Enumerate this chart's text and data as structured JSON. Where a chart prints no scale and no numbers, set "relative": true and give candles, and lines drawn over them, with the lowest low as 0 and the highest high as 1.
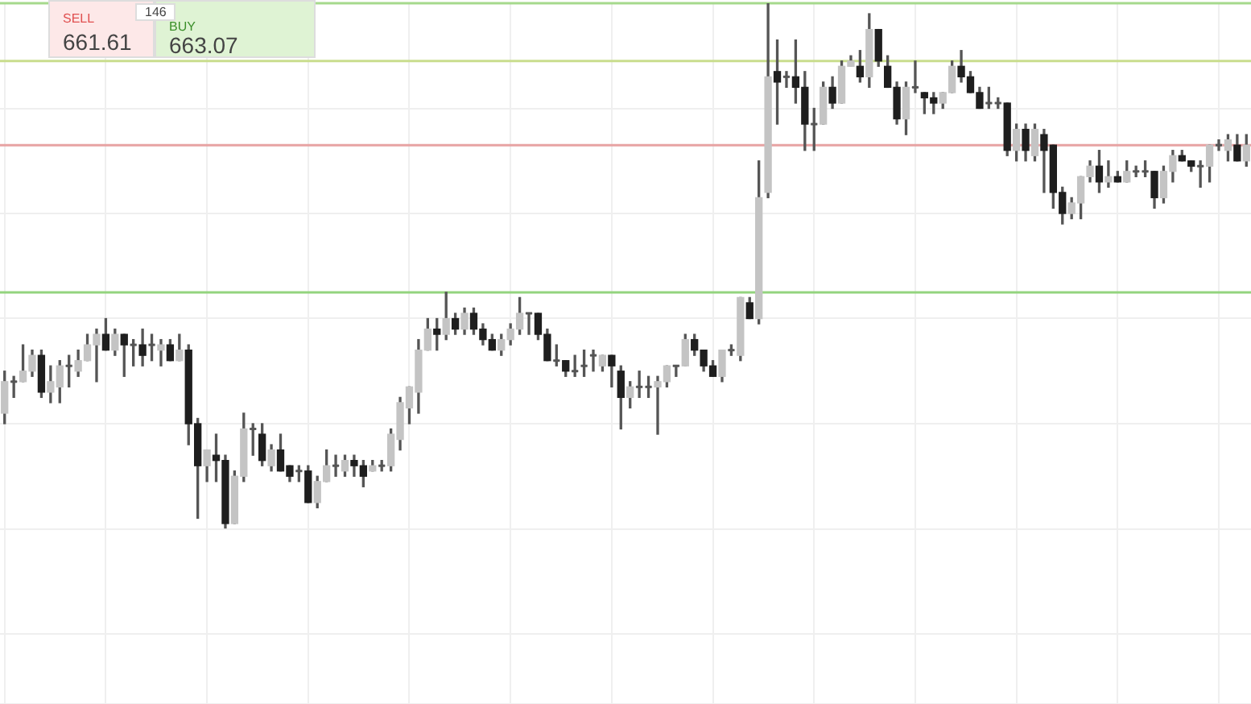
{
  "chart_data": {
    "type": "candlestick",
    "relative": true,
    "grid": true,
    "annotations": [
      "SELL",
      "661.61",
      "146",
      "BUY",
      "663.07"
    ],
    "ref_lines": [
      {
        "axis": "y",
        "value": 1.0,
        "color": "#a6d98c"
      },
      {
        "axis": "y",
        "value": 0.89,
        "color": "#c9dd8e"
      },
      {
        "axis": "y",
        "value": 0.73,
        "color": "#e7a3a3"
      },
      {
        "axis": "y",
        "value": 0.45,
        "color": "#93d47e"
      }
    ],
    "categories": [
      null,
      null,
      null,
      null,
      null,
      null,
      null,
      null,
      null,
      null,
      null,
      null,
      null,
      null,
      null,
      null,
      null,
      null,
      null,
      null,
      null,
      null,
      null,
      null,
      null,
      null,
      null,
      null,
      null,
      null,
      null,
      null,
      null,
      null,
      null,
      null,
      null,
      null,
      null,
      null,
      null,
      null,
      null,
      null,
      null,
      null,
      null,
      null,
      null,
      null,
      null,
      null,
      null,
      null,
      null,
      null,
      null,
      null,
      null,
      null,
      null,
      null,
      null,
      null,
      null,
      null,
      null,
      null,
      null,
      null,
      null,
      null,
      null,
      null,
      null,
      null,
      null,
      null,
      null,
      null,
      null,
      null,
      null,
      null,
      null,
      null,
      null,
      null,
      null,
      null,
      null,
      null,
      null,
      null,
      null,
      null,
      null,
      null,
      null,
      null,
      null,
      null,
      null,
      null,
      null,
      null,
      null,
      null,
      null,
      null,
      null,
      null,
      null,
      null,
      null,
      null,
      null,
      null,
      null,
      null,
      null,
      null,
      null,
      null,
      null,
      null,
      null,
      null,
      null,
      null,
      null,
      null,
      null,
      null,
      null,
      null
    ],
    "ohlc": [
      [
        0.22,
        0.3,
        0.2,
        0.28
      ],
      [
        0.28,
        0.29,
        0.25,
        0.28
      ],
      [
        0.28,
        0.35,
        0.28,
        0.3
      ],
      [
        0.3,
        0.34,
        0.29,
        0.33
      ],
      [
        0.33,
        0.34,
        0.25,
        0.26
      ],
      [
        0.26,
        0.31,
        0.24,
        0.28
      ],
      [
        0.27,
        0.32,
        0.24,
        0.31
      ],
      [
        0.31,
        0.33,
        0.27,
        0.31
      ],
      [
        0.3,
        0.34,
        0.29,
        0.32
      ],
      [
        0.32,
        0.37,
        0.32,
        0.35
      ],
      [
        0.35,
        0.38,
        0.28,
        0.37
      ],
      [
        0.37,
        0.4,
        0.34,
        0.34
      ],
      [
        0.34,
        0.38,
        0.33,
        0.37
      ],
      [
        0.37,
        0.37,
        0.29,
        0.35
      ],
      [
        0.35,
        0.36,
        0.31,
        0.35
      ],
      [
        0.35,
        0.38,
        0.31,
        0.33
      ],
      [
        0.35,
        0.37,
        0.32,
        0.35
      ],
      [
        0.34,
        0.36,
        0.31,
        0.35
      ],
      [
        0.35,
        0.36,
        0.32,
        0.32
      ],
      [
        0.32,
        0.37,
        0.32,
        0.34
      ],
      [
        0.34,
        0.35,
        0.16,
        0.2
      ],
      [
        0.2,
        0.21,
        0.02,
        0.12
      ],
      [
        0.12,
        0.15,
        0.09,
        0.15
      ],
      [
        0.14,
        0.18,
        0.09,
        0.13
      ],
      [
        0.13,
        0.14,
        0.0,
        0.01
      ],
      [
        0.01,
        0.11,
        0.01,
        0.1
      ],
      [
        0.1,
        0.22,
        0.09,
        0.19
      ],
      [
        0.19,
        0.2,
        0.14,
        0.19
      ],
      [
        0.18,
        0.2,
        0.12,
        0.13
      ],
      [
        0.12,
        0.16,
        0.11,
        0.15
      ],
      [
        0.15,
        0.18,
        0.11,
        0.11
      ],
      [
        0.12,
        0.12,
        0.09,
        0.1
      ],
      [
        0.11,
        0.12,
        0.09,
        0.11
      ],
      [
        0.11,
        0.12,
        0.05,
        0.05
      ],
      [
        0.05,
        0.1,
        0.04,
        0.09
      ],
      [
        0.09,
        0.15,
        0.09,
        0.12
      ],
      [
        0.12,
        0.14,
        0.1,
        0.12
      ],
      [
        0.11,
        0.14,
        0.1,
        0.13
      ],
      [
        0.13,
        0.14,
        0.1,
        0.12
      ],
      [
        0.12,
        0.13,
        0.08,
        0.1
      ],
      [
        0.11,
        0.13,
        0.11,
        0.12
      ],
      [
        0.12,
        0.13,
        0.11,
        0.12
      ],
      [
        0.12,
        0.19,
        0.11,
        0.18
      ],
      [
        0.17,
        0.25,
        0.15,
        0.24
      ],
      [
        0.23,
        0.27,
        0.2,
        0.27
      ],
      [
        0.26,
        0.36,
        0.22,
        0.34
      ],
      [
        0.34,
        0.4,
        0.34,
        0.38
      ],
      [
        0.38,
        0.4,
        0.34,
        0.37
      ],
      [
        0.37,
        0.45,
        0.36,
        0.4
      ],
      [
        0.4,
        0.41,
        0.37,
        0.38
      ],
      [
        0.38,
        0.42,
        0.37,
        0.41
      ],
      [
        0.41,
        0.42,
        0.37,
        0.38
      ],
      [
        0.38,
        0.39,
        0.35,
        0.36
      ],
      [
        0.36,
        0.37,
        0.34,
        0.34
      ],
      [
        0.34,
        0.37,
        0.33,
        0.36
      ],
      [
        0.36,
        0.39,
        0.35,
        0.38
      ],
      [
        0.38,
        0.44,
        0.37,
        0.41
      ],
      [
        0.41,
        0.41,
        0.37,
        0.41
      ],
      [
        0.41,
        0.41,
        0.36,
        0.37
      ],
      [
        0.37,
        0.38,
        0.32,
        0.32
      ],
      [
        0.32,
        0.35,
        0.31,
        0.32
      ],
      [
        0.32,
        0.32,
        0.29,
        0.3
      ],
      [
        0.3,
        0.33,
        0.29,
        0.3
      ],
      [
        0.31,
        0.34,
        0.29,
        0.31
      ],
      [
        0.33,
        0.34,
        0.3,
        0.33
      ],
      [
        0.31,
        0.33,
        0.3,
        0.33
      ],
      [
        0.33,
        0.33,
        0.27,
        0.31
      ],
      [
        0.3,
        0.31,
        0.19,
        0.25
      ],
      [
        0.25,
        0.28,
        0.23,
        0.27
      ],
      [
        0.27,
        0.3,
        0.25,
        0.27
      ],
      [
        0.27,
        0.29,
        0.25,
        0.27
      ],
      [
        0.27,
        0.29,
        0.18,
        0.28
      ],
      [
        0.28,
        0.31,
        0.27,
        0.31
      ],
      [
        0.31,
        0.31,
        0.29,
        0.31
      ],
      [
        0.31,
        0.37,
        0.31,
        0.36
      ],
      [
        0.36,
        0.37,
        0.33,
        0.34
      ],
      [
        0.34,
        0.34,
        0.3,
        0.31
      ],
      [
        0.31,
        0.32,
        0.29,
        0.29
      ],
      [
        0.29,
        0.34,
        0.28,
        0.34
      ],
      [
        0.34,
        0.35,
        0.33,
        0.34
      ],
      [
        0.33,
        0.44,
        0.32,
        0.44
      ],
      [
        0.43,
        0.44,
        0.4,
        0.4
      ],
      [
        0.4,
        0.7,
        0.39,
        0.63
      ],
      [
        0.64,
        1.0,
        0.63,
        0.86
      ],
      [
        0.87,
        0.93,
        0.77,
        0.85
      ],
      [
        0.86,
        0.87,
        0.84,
        0.86
      ],
      [
        0.86,
        0.93,
        0.81,
        0.84
      ],
      [
        0.84,
        0.87,
        0.72,
        0.77
      ],
      [
        0.77,
        0.8,
        0.72,
        0.77
      ],
      [
        0.77,
        0.85,
        0.77,
        0.84
      ],
      [
        0.84,
        0.86,
        0.8,
        0.81
      ],
      [
        0.81,
        0.89,
        0.81,
        0.88
      ],
      [
        0.88,
        0.9,
        0.88,
        0.89
      ],
      [
        0.88,
        0.91,
        0.85,
        0.86
      ],
      [
        0.86,
        0.98,
        0.84,
        0.95
      ],
      [
        0.95,
        0.95,
        0.88,
        0.89
      ],
      [
        0.88,
        0.9,
        0.84,
        0.84
      ],
      [
        0.84,
        0.85,
        0.77,
        0.78
      ],
      [
        0.78,
        0.85,
        0.75,
        0.84
      ],
      [
        0.84,
        0.89,
        0.83,
        0.84
      ],
      [
        0.83,
        0.83,
        0.79,
        0.82
      ],
      [
        0.82,
        0.83,
        0.79,
        0.81
      ],
      [
        0.81,
        0.83,
        0.8,
        0.83
      ],
      [
        0.83,
        0.89,
        0.83,
        0.88
      ],
      [
        0.88,
        0.91,
        0.85,
        0.86
      ],
      [
        0.86,
        0.87,
        0.83,
        0.83
      ],
      [
        0.83,
        0.84,
        0.8,
        0.8
      ],
      [
        0.81,
        0.84,
        0.8,
        0.81
      ],
      [
        0.81,
        0.82,
        0.8,
        0.81
      ],
      [
        0.81,
        0.81,
        0.71,
        0.72
      ],
      [
        0.72,
        0.77,
        0.7,
        0.76
      ],
      [
        0.76,
        0.77,
        0.7,
        0.72
      ],
      [
        0.71,
        0.77,
        0.7,
        0.76
      ],
      [
        0.75,
        0.76,
        0.64,
        0.72
      ],
      [
        0.73,
        0.73,
        0.61,
        0.64
      ],
      [
        0.64,
        0.65,
        0.58,
        0.6
      ],
      [
        0.6,
        0.63,
        0.59,
        0.62
      ],
      [
        0.62,
        0.67,
        0.59,
        0.67
      ],
      [
        0.67,
        0.7,
        0.66,
        0.69
      ],
      [
        0.69,
        0.72,
        0.64,
        0.66
      ],
      [
        0.66,
        0.7,
        0.65,
        0.67
      ],
      [
        0.67,
        0.68,
        0.66,
        0.66
      ],
      [
        0.66,
        0.7,
        0.66,
        0.68
      ],
      [
        0.68,
        0.69,
        0.67,
        0.68
      ],
      [
        0.68,
        0.7,
        0.67,
        0.68
      ],
      [
        0.68,
        0.68,
        0.61,
        0.63
      ],
      [
        0.63,
        0.69,
        0.62,
        0.68
      ],
      [
        0.68,
        0.72,
        0.66,
        0.71
      ],
      [
        0.71,
        0.72,
        0.7,
        0.7
      ],
      [
        0.7,
        0.7,
        0.68,
        0.69
      ],
      [
        0.69,
        0.7,
        0.65,
        0.69
      ],
      [
        0.69,
        0.73,
        0.66,
        0.73
      ],
      [
        0.73,
        0.74,
        0.72,
        0.73
      ],
      [
        0.72,
        0.75,
        0.7,
        0.74
      ],
      [
        0.73,
        0.75,
        0.7,
        0.7
      ],
      [
        0.7,
        0.75,
        0.69,
        0.73
      ]
    ]
  }
}
